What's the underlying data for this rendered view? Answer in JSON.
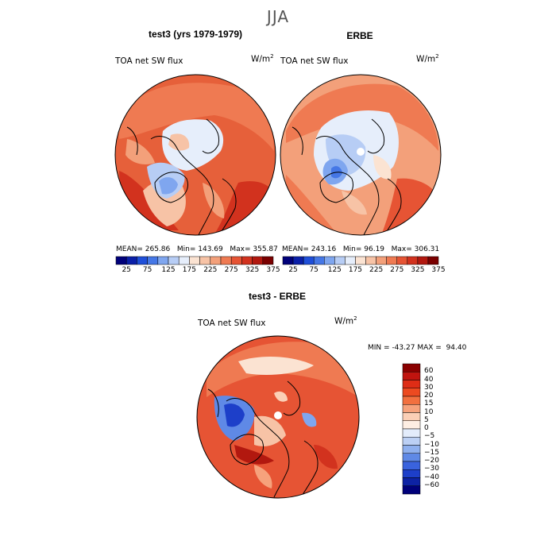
{
  "figure": {
    "suptitle": "JJA",
    "panels": [
      {
        "title": "test3 (yrs 1979-1979)",
        "variable": "TOA net SW flux",
        "units_base": "W/m",
        "units_exp": "2",
        "stats": {
          "mean_label": "MEAN=",
          "mean": "265.86",
          "min_label": "Min=",
          "min": "143.69",
          "max_label": "Max=",
          "max": "355.87"
        }
      },
      {
        "title": "ERBE",
        "variable": "TOA net SW flux",
        "units_base": "W/m",
        "units_exp": "2",
        "stats": {
          "mean_label": "MEAN=",
          "mean": "243.16",
          "min_label": "Min=",
          "min": "96.19",
          "max_label": "Max=",
          "max": "306.31"
        }
      },
      {
        "title": "test3 - ERBE",
        "variable": "TOA net SW flux",
        "units_base": "W/m",
        "units_exp": "2",
        "stats": {
          "min_label": "MIN =",
          "min": "-43.27",
          "max_label": "MAX =",
          "max": "94.40"
        }
      }
    ],
    "abs_colorbar": {
      "colors": [
        "#00007a",
        "#0a1fa8",
        "#1f4fd9",
        "#4577e6",
        "#7fa6ef",
        "#b7cdf5",
        "#e6eefb",
        "#fbe3d2",
        "#f7c3a6",
        "#f3a07a",
        "#ef7a52",
        "#e65434",
        "#d2321e",
        "#b2180f",
        "#7a0000"
      ],
      "ticks": [
        "25",
        "75",
        "125",
        "175",
        "225",
        "275",
        "325",
        "375"
      ]
    },
    "diff_colorbar": {
      "colors_top_to_bottom": [
        "#8a0000",
        "#c0140f",
        "#de2d16",
        "#ec4a20",
        "#f2703f",
        "#f6a27c",
        "#fbcfb6",
        "#fdeee3",
        "#e3ecfb",
        "#bcd0f4",
        "#8fb0ee",
        "#5f89e6",
        "#3a63dd",
        "#1d3fc9",
        "#0d22a4",
        "#00007a"
      ],
      "ticks": [
        "60",
        "40",
        "30",
        "20",
        "15",
        "10",
        "5",
        "0",
        "−5",
        "−10",
        "−15",
        "−20",
        "−30",
        "−40",
        "−60"
      ]
    }
  },
  "chart_data": [
    {
      "type": "heatmap",
      "title": "test3 (yrs 1979-1979)",
      "variable": "TOA net SW flux",
      "units": "W/m2",
      "projection": "north polar stereographic",
      "season": "JJA",
      "mean": 265.86,
      "min": 143.69,
      "max": 355.87,
      "color_levels": [
        25,
        50,
        75,
        100,
        125,
        150,
        175,
        200,
        225,
        250,
        275,
        300,
        325,
        350,
        375
      ]
    },
    {
      "type": "heatmap",
      "title": "ERBE",
      "variable": "TOA net SW flux",
      "units": "W/m2",
      "projection": "north polar stereographic",
      "season": "JJA",
      "mean": 243.16,
      "min": 96.19,
      "max": 306.31,
      "color_levels": [
        25,
        50,
        75,
        100,
        125,
        150,
        175,
        200,
        225,
        250,
        275,
        300,
        325,
        350,
        375
      ]
    },
    {
      "type": "heatmap",
      "title": "test3 - ERBE",
      "variable": "TOA net SW flux",
      "units": "W/m2",
      "projection": "north polar stereographic",
      "season": "JJA",
      "min": -43.27,
      "max": 94.4,
      "color_levels": [
        -60,
        -40,
        -30,
        -20,
        -15,
        -10,
        -5,
        0,
        5,
        10,
        15,
        20,
        30,
        40,
        60
      ]
    }
  ]
}
